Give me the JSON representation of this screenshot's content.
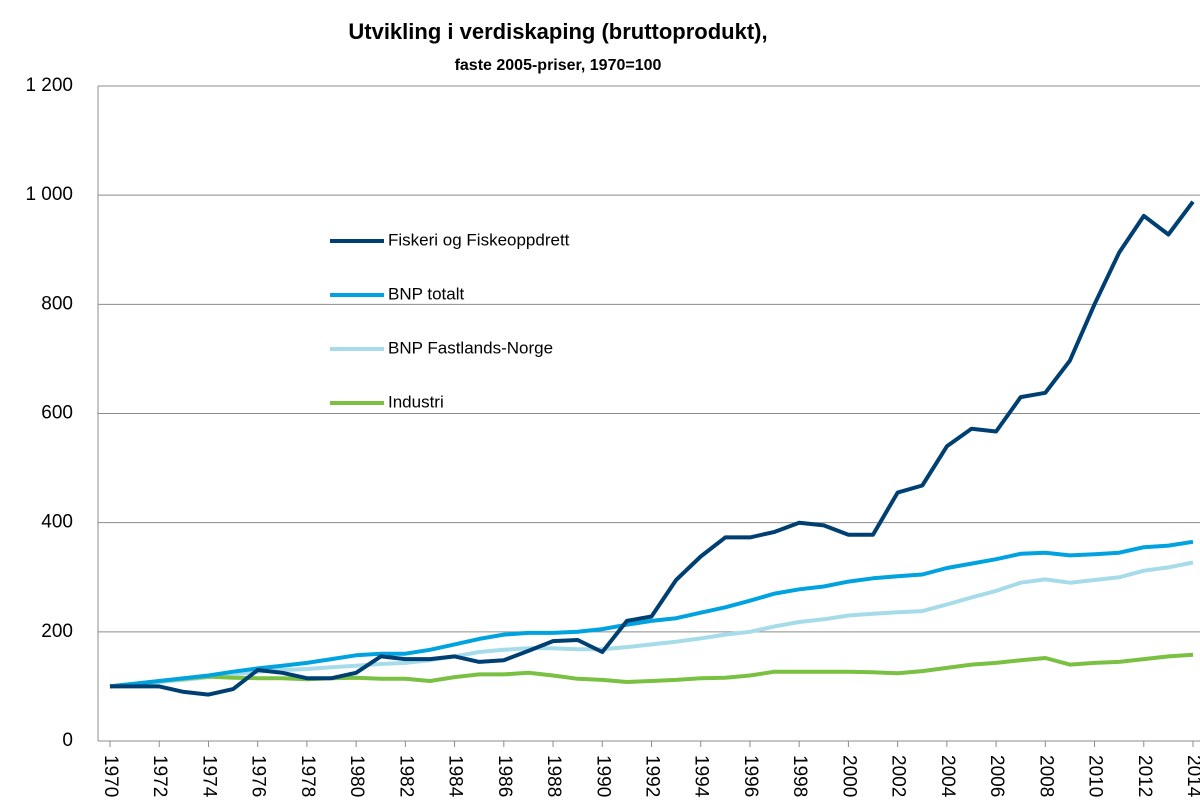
{
  "chart_data": {
    "type": "line",
    "title": "Utvikling i verdiskaping (bruttoprodukt),",
    "subtitle": "faste 2005-priser, 1970=100",
    "x": [
      1970,
      1971,
      1972,
      1973,
      1974,
      1975,
      1976,
      1977,
      1978,
      1979,
      1980,
      1981,
      1982,
      1983,
      1984,
      1985,
      1986,
      1987,
      1988,
      1989,
      1990,
      1991,
      1992,
      1993,
      1994,
      1995,
      1996,
      1997,
      1998,
      1999,
      2000,
      2001,
      2002,
      2003,
      2004,
      2005,
      2006,
      2007,
      2008,
      2009,
      2010,
      2011,
      2012,
      2013,
      2014
    ],
    "xlim": [
      1970,
      2014
    ],
    "xticks": [
      1970,
      1972,
      1974,
      1976,
      1978,
      1980,
      1982,
      1984,
      1986,
      1988,
      1990,
      1992,
      1994,
      1996,
      1998,
      2000,
      2002,
      2004,
      2006,
      2008,
      2010,
      2012,
      2014
    ],
    "ylim": [
      0,
      1200
    ],
    "yticks": [
      0,
      200,
      400,
      600,
      800,
      {
        "value": 1000,
        "label": "1 000"
      },
      {
        "value": 1200,
        "label": "1 200"
      }
    ],
    "grid": true,
    "series": [
      {
        "name": "Fiskeri og Fiskeoppdrett",
        "color": "#003f72",
        "values": [
          100,
          100,
          100,
          90,
          85,
          95,
          130,
          125,
          115,
          115,
          125,
          155,
          150,
          150,
          155,
          145,
          148,
          165,
          183,
          185,
          163,
          220,
          228,
          295,
          338,
          373,
          373,
          383,
          400,
          395,
          378,
          378,
          455,
          468,
          540,
          572,
          567,
          630,
          638,
          697,
          800,
          895,
          962,
          928,
          988
        ]
      },
      {
        "name": "BNP totalt",
        "color": "#00a3e0",
        "values": [
          100,
          105,
          110,
          115,
          120,
          127,
          133,
          138,
          143,
          150,
          157,
          160,
          160,
          167,
          177,
          187,
          195,
          198,
          198,
          200,
          205,
          213,
          220,
          225,
          235,
          245,
          257,
          270,
          278,
          283,
          292,
          298,
          302,
          305,
          317,
          325,
          333,
          343,
          345,
          340,
          342,
          345,
          355,
          358,
          365
        ]
      },
      {
        "name": "BNP Fastlands-Norge",
        "color": "#a6dce9",
        "values": [
          100,
          104,
          108,
          112,
          117,
          122,
          127,
          130,
          132,
          135,
          138,
          141,
          143,
          148,
          155,
          163,
          167,
          170,
          170,
          168,
          168,
          172,
          177,
          182,
          188,
          195,
          200,
          210,
          218,
          223,
          230,
          233,
          236,
          238,
          250,
          263,
          275,
          290,
          296,
          290,
          295,
          300,
          312,
          318,
          327
        ]
      },
      {
        "name": "Industri",
        "color": "#7ac143",
        "values": [
          100,
          105,
          110,
          114,
          118,
          116,
          115,
          115,
          113,
          115,
          116,
          114,
          114,
          110,
          117,
          122,
          122,
          125,
          120,
          114,
          112,
          108,
          110,
          112,
          115,
          116,
          120,
          127,
          127,
          127,
          127,
          126,
          124,
          128,
          134,
          140,
          143,
          148,
          152,
          140,
          143,
          145,
          150,
          155,
          158
        ]
      }
    ]
  }
}
